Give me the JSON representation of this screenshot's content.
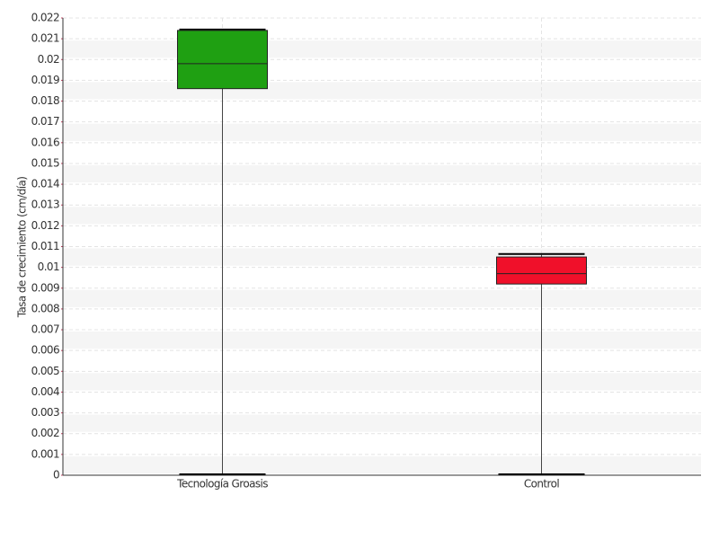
{
  "chart_data": {
    "type": "box",
    "y_label": "Tasa de crecimiento (cm/día)",
    "categories": [
      "Tecnología Groasis",
      "Control"
    ],
    "values": [
      {
        "min": 0,
        "q1": 0.0186,
        "median": 0.0198,
        "q3": 0.0214,
        "max": 0.0214
      },
      {
        "min": 0,
        "q1": 0.0092,
        "median": 0.0097,
        "q3": 0.0105,
        "max": 0.0106
      }
    ],
    "colors": [
      "#1fa012",
      "#f0102a"
    ],
    "ylim": [
      0,
      0.022
    ],
    "yticks": [
      0,
      0.001,
      0.002,
      0.003,
      0.004,
      0.005,
      0.006,
      0.007,
      0.008,
      0.009,
      0.01,
      0.011,
      0.012,
      0.013,
      0.014,
      0.015,
      0.016,
      0.017,
      0.018,
      0.019,
      0.02,
      0.021,
      0.022
    ],
    "grid": true
  }
}
